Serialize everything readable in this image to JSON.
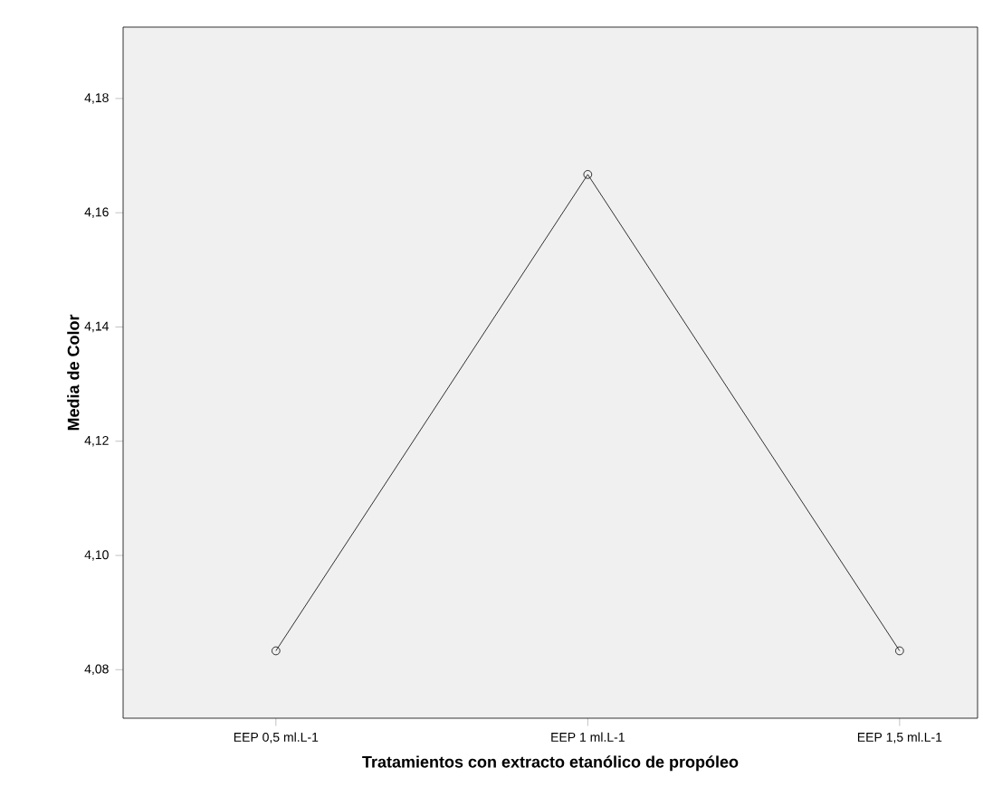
{
  "chart_data": {
    "type": "line",
    "xlabel": "Tratamientos con extracto etanólico de propóleo",
    "ylabel": "Media de Color",
    "categories": [
      "EEP 0,5 ml.L-1",
      "EEP 1 ml.L-1",
      "EEP 1,5 ml.L-1"
    ],
    "values": [
      4.0833,
      4.1667,
      4.0833
    ],
    "color": "#000000",
    "marker": "circle",
    "ylim": [
      4.0715,
      4.1925
    ],
    "yticks": [
      {
        "value": 4.08,
        "label": "4,08"
      },
      {
        "value": 4.1,
        "label": "4,10"
      },
      {
        "value": 4.12,
        "label": "4,12"
      },
      {
        "value": 4.14,
        "label": "4,14"
      },
      {
        "value": 4.16,
        "label": "4,16"
      },
      {
        "value": 4.18,
        "label": "4,18"
      }
    ],
    "grid": false
  }
}
